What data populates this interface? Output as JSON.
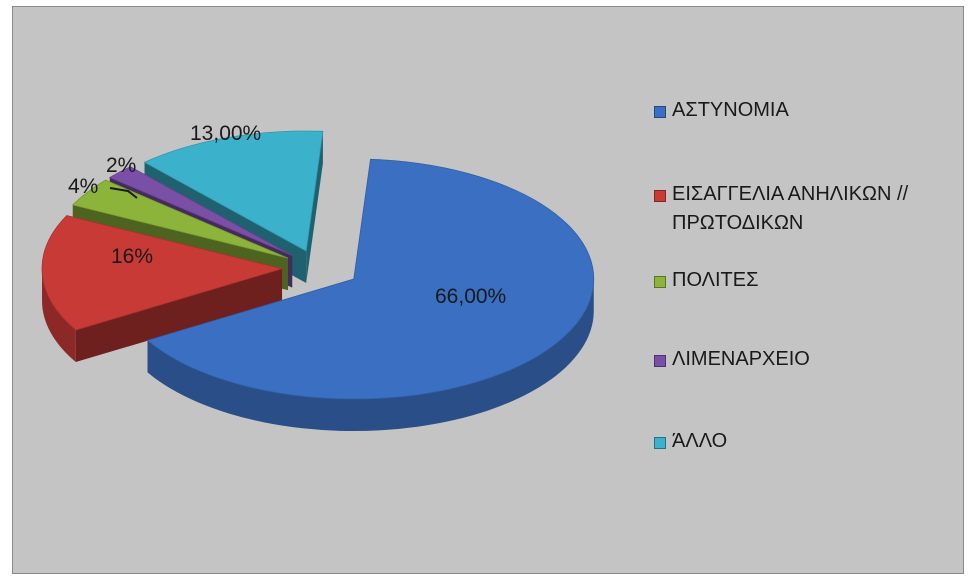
{
  "chart_data": {
    "type": "pie",
    "style": "3d-exploded",
    "title": "",
    "categories": [
      "ΑΣΤΥΝΟΜΙΑ",
      "ΕΙΣΑΓΓΕΛΙΑ ΑΝΗΛΙΚΩΝ // ΠΡΩΤΟΔΙΚΩΝ",
      "ΠΟΛΙΤΕΣ",
      "ΛΙΜΕΝΑΡΧΕΙΟ",
      "ΆΛΛΟ"
    ],
    "values": [
      66,
      16,
      4,
      2,
      13
    ],
    "data_labels": [
      "66,00%",
      "16%",
      "4%",
      "2%",
      "13,00%"
    ],
    "colors": [
      "#3a6fc2",
      "#c83a36",
      "#8cb43a",
      "#7a4fa6",
      "#3bb1cc"
    ],
    "legend_position": "right"
  }
}
